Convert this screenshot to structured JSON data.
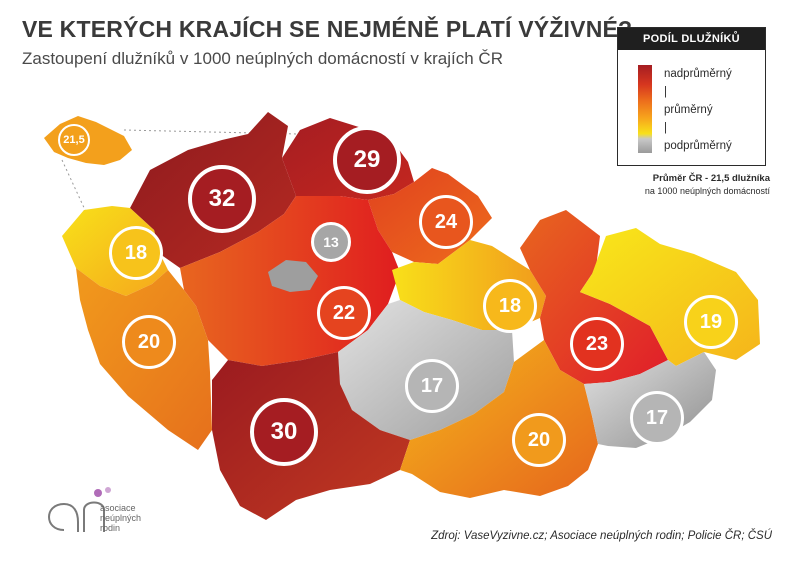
{
  "title": "VE KTERÝCH KRAJÍCH SE NEJMÉNĚ PLATÍ VÝŽIVNÉ?",
  "subtitle": "Zastoupení dlužníků v 1000 neúplných domácností v krajích ČR",
  "legend": {
    "header": "PODÍL DLUŽNÍKŮ",
    "items": [
      "nadprůměrný",
      "|",
      "průměrný",
      "|",
      "podprůměrný"
    ]
  },
  "average_note": {
    "line1": "Průměr ČR - 21,5 dlužníka",
    "line2": "na 1000 neúplných domácností"
  },
  "source": "Zdroj: VaseVyzivne.cz; Asociace neúplných rodin; Policie ČR; ČSÚ",
  "logo": {
    "mark": "an",
    "text_line1": "asociace",
    "text_line2": "neúplných",
    "text_line3": "rodin"
  },
  "inset_value": "21,5",
  "regions": [
    {
      "id": "ustecky",
      "value": "32",
      "color": "#a51d22"
    },
    {
      "id": "liberecky",
      "value": "29",
      "color": "#a51d22"
    },
    {
      "id": "kralovehradecky",
      "value": "24",
      "color": "#e8561e"
    },
    {
      "id": "karlovarsky",
      "value": "18",
      "color": "#f7c31b"
    },
    {
      "id": "praha",
      "value": "13",
      "color": "#a6a6a6"
    },
    {
      "id": "stredocesky",
      "value": "22",
      "color": "#e5441f"
    },
    {
      "id": "pardubicky",
      "value": "18",
      "color": "#f7b81b"
    },
    {
      "id": "plzensky",
      "value": "20",
      "color": "#ee8a1c"
    },
    {
      "id": "olomoucky",
      "value": "23",
      "color": "#e2321f"
    },
    {
      "id": "moravskoslezsky",
      "value": "19",
      "color": "#f8d21a"
    },
    {
      "id": "vysocina",
      "value": "17",
      "color": "#b5b5b5"
    },
    {
      "id": "jihocesky",
      "value": "30",
      "color": "#a51d22"
    },
    {
      "id": "jihomoravsky",
      "value": "20",
      "color": "#f19a1c"
    },
    {
      "id": "zlinsky",
      "value": "17",
      "color": "#b5b5b5"
    }
  ]
}
